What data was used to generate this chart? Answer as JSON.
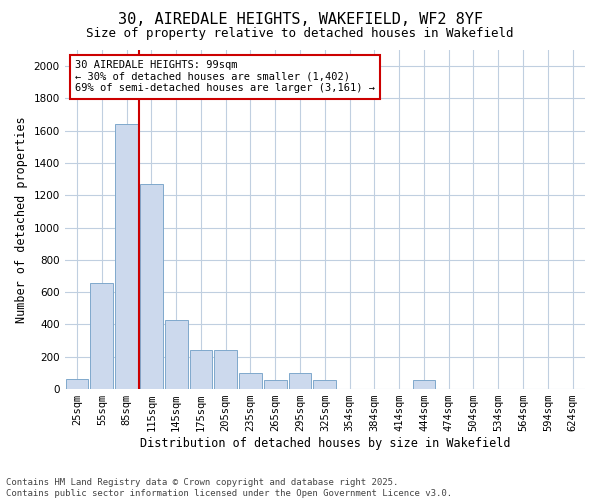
{
  "title_line1": "30, AIREDALE HEIGHTS, WAKEFIELD, WF2 8YF",
  "title_line2": "Size of property relative to detached houses in Wakefield",
  "xlabel": "Distribution of detached houses by size in Wakefield",
  "ylabel": "Number of detached properties",
  "categories": [
    "25sqm",
    "55sqm",
    "85sqm",
    "115sqm",
    "145sqm",
    "175sqm",
    "205sqm",
    "235sqm",
    "265sqm",
    "295sqm",
    "325sqm",
    "354sqm",
    "384sqm",
    "414sqm",
    "444sqm",
    "474sqm",
    "504sqm",
    "534sqm",
    "564sqm",
    "594sqm",
    "624sqm"
  ],
  "values": [
    65,
    660,
    1640,
    1270,
    430,
    240,
    240,
    100,
    55,
    100,
    55,
    0,
    0,
    0,
    55,
    0,
    0,
    0,
    0,
    0,
    0
  ],
  "bar_color": "#ccd9ed",
  "bar_edge_color": "#7fa8cc",
  "bar_width": 0.92,
  "ylim": [
    0,
    2100
  ],
  "yticks": [
    0,
    200,
    400,
    600,
    800,
    1000,
    1200,
    1400,
    1600,
    1800,
    2000
  ],
  "vline_x": 2.5,
  "vline_color": "#cc0000",
  "annotation_text": "30 AIREDALE HEIGHTS: 99sqm\n← 30% of detached houses are smaller (1,402)\n69% of semi-detached houses are larger (3,161) →",
  "annotation_box_color": "#cc0000",
  "footnote1": "Contains HM Land Registry data © Crown copyright and database right 2025.",
  "footnote2": "Contains public sector information licensed under the Open Government Licence v3.0.",
  "background_color": "#ffffff",
  "grid_color": "#c0cfe0",
  "title_fontsize": 11,
  "subtitle_fontsize": 9,
  "axis_label_fontsize": 8.5,
  "tick_fontsize": 7.5,
  "annot_fontsize": 7.5,
  "footnote_fontsize": 6.5
}
